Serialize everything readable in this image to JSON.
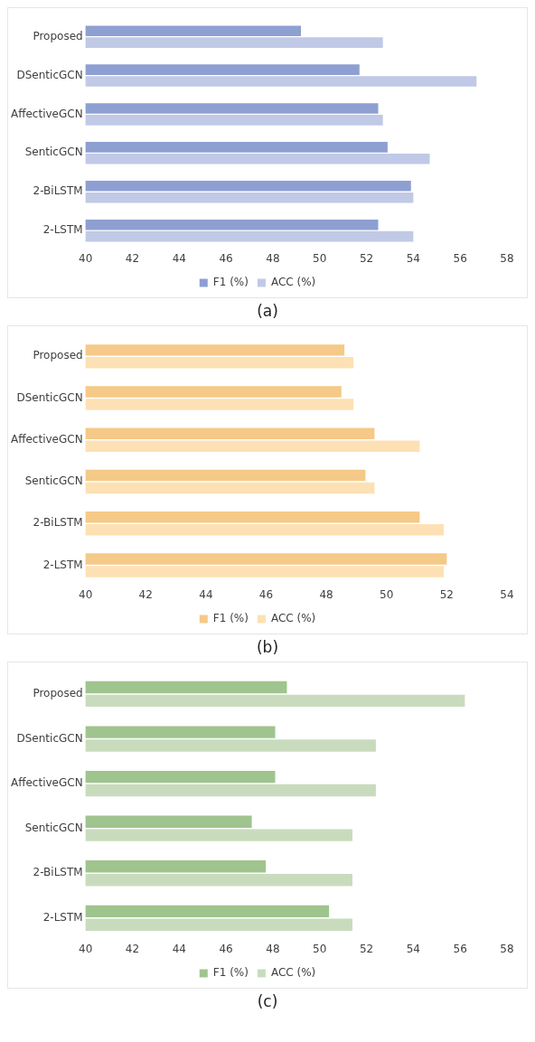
{
  "chart_data": [
    {
      "type": "bar",
      "orientation": "horizontal",
      "categories": [
        "Proposed",
        "DSenticGCN",
        "AffectiveGCN",
        "SenticGCN",
        "2-BiLSTM",
        "2-LSTM"
      ],
      "series": [
        {
          "name": "F1 (%)",
          "color": "#8e9fd2",
          "values": [
            49.2,
            51.7,
            52.5,
            52.9,
            53.9,
            52.5
          ]
        },
        {
          "name": "ACC (%)",
          "color": "#c0c9e6",
          "values": [
            52.7,
            56.7,
            52.7,
            54.7,
            54.0,
            54.0
          ]
        }
      ],
      "xlim": [
        40,
        58
      ],
      "xticks": [
        40,
        42,
        44,
        46,
        48,
        50,
        52,
        54,
        56,
        58
      ],
      "grid": false,
      "legend": "bottom",
      "annotations": [
        "(a)"
      ]
    },
    {
      "type": "bar",
      "orientation": "horizontal",
      "categories": [
        "Proposed",
        "DSenticGCN",
        "AffectiveGCN",
        "SenticGCN",
        "2-BiLSTM",
        "2-LSTM"
      ],
      "series": [
        {
          "name": "F1 (%)",
          "color": "#f5c987",
          "values": [
            48.6,
            48.5,
            49.6,
            49.3,
            51.1,
            52.0
          ]
        },
        {
          "name": "ACC (%)",
          "color": "#fde1b4",
          "values": [
            48.9,
            48.9,
            51.1,
            49.6,
            51.9,
            51.9
          ]
        }
      ],
      "xlim": [
        40,
        54
      ],
      "xticks": [
        40,
        42,
        44,
        46,
        48,
        50,
        52,
        54
      ],
      "grid": false,
      "legend": "bottom",
      "annotations": [
        "(b)"
      ]
    },
    {
      "type": "bar",
      "orientation": "horizontal",
      "categories": [
        "Proposed",
        "DSenticGCN",
        "AffectiveGCN",
        "SenticGCN",
        "2-BiLSTM",
        "2-LSTM"
      ],
      "series": [
        {
          "name": "F1 (%)",
          "color": "#9fc48e",
          "values": [
            48.6,
            48.1,
            48.1,
            47.1,
            47.7,
            50.4
          ]
        },
        {
          "name": "ACC (%)",
          "color": "#c8dcbd",
          "values": [
            56.2,
            52.4,
            52.4,
            51.4,
            51.4,
            51.4
          ]
        }
      ],
      "xlim": [
        40,
        58
      ],
      "xticks": [
        40,
        42,
        44,
        46,
        48,
        50,
        52,
        54,
        56,
        58
      ],
      "grid": false,
      "legend": "bottom",
      "annotations": [
        "(c)"
      ]
    }
  ]
}
